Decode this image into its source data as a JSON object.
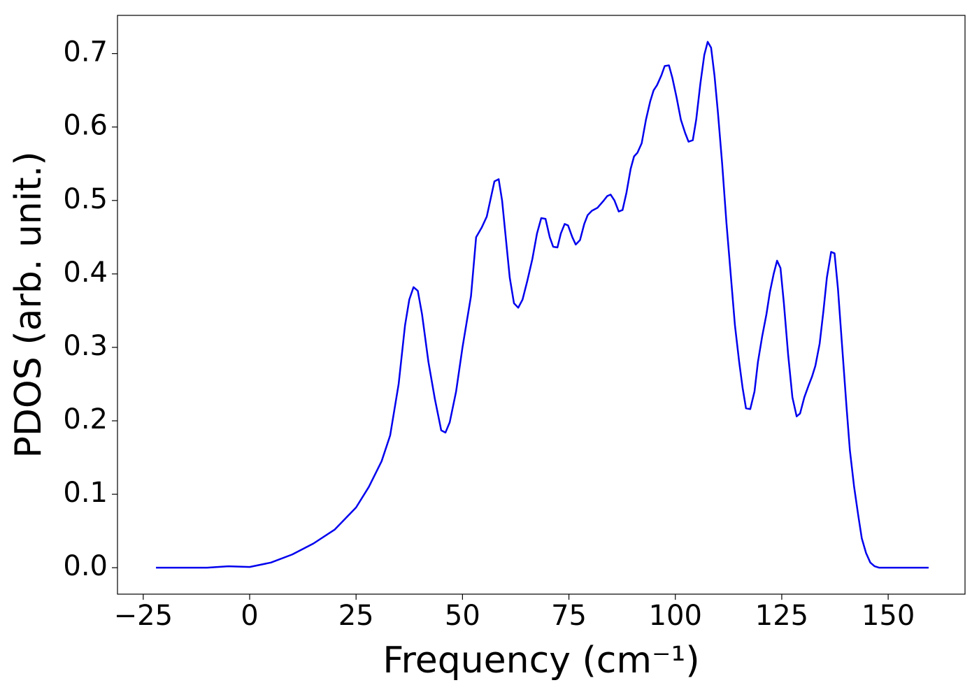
{
  "chart_data": {
    "type": "line",
    "xlabel": "Frequency (cm⁻¹)",
    "ylabel": "PDOS (arb. unit.)",
    "xlim": [
      -31.05,
      168.05
    ],
    "ylim": [
      -0.036,
      0.752
    ],
    "xticks": [
      {
        "value": -25,
        "label": "−25"
      },
      0,
      25,
      50,
      75,
      100,
      125,
      150
    ],
    "yticks": [
      {
        "value": 0,
        "label": "0.0"
      },
      0.1,
      0.2,
      0.3,
      0.4,
      0.5,
      0.6,
      0.7
    ],
    "grid": false,
    "series": [
      {
        "color": "#0000ee",
        "x": [
          -22,
          -10,
          -5,
          0,
          5,
          10,
          15,
          20,
          25,
          28,
          31,
          33,
          35,
          36.5,
          37.5,
          38.5,
          39.5,
          40.5,
          42,
          43.5,
          45,
          46,
          47,
          48.5,
          50,
          52,
          53.2,
          54.5,
          55.7,
          57.5,
          58.5,
          59.3,
          61.1,
          62.1,
          63.1,
          64.1,
          65.2,
          66.4,
          67.5,
          68.5,
          69.5,
          70.5,
          71.3,
          72.3,
          73.1,
          74.0,
          74.8,
          75.8,
          76.6,
          77.6,
          78.6,
          79.4,
          80.4,
          81.7,
          83.2,
          84.0,
          84.8,
          85.7,
          86.7,
          87.6,
          88.5,
          89.5,
          90.3,
          91.1,
          92.1,
          93.1,
          94.1,
          94.9,
          95.7,
          96.7,
          97.5,
          98.5,
          99.3,
          100.3,
          101.3,
          102.3,
          103.1,
          104.1,
          104.9,
          105.9,
          106.8,
          107.6,
          108.4,
          109.2,
          110,
          111,
          112,
          113,
          114,
          115,
          115.8,
          116.6,
          117.6,
          118.6,
          119.4,
          120.4,
          121.4,
          122.2,
          123.1,
          123.9,
          124.7,
          125.5,
          126.5,
          127.5,
          128.5,
          129.3,
          130.3,
          131.3,
          132.1,
          132.9,
          133.9,
          134.8,
          135.6,
          136.6,
          137.4,
          138.2,
          139.2,
          140.2,
          141,
          142,
          143,
          143.8,
          144.8,
          145.8,
          146.8,
          147.9,
          159.5
        ],
        "values": [
          0,
          0,
          0.002,
          0.001,
          0.007,
          0.018,
          0.033,
          0.052,
          0.082,
          0.11,
          0.145,
          0.18,
          0.25,
          0.33,
          0.365,
          0.382,
          0.377,
          0.345,
          0.28,
          0.23,
          0.187,
          0.184,
          0.198,
          0.24,
          0.3,
          0.37,
          0.45,
          0.463,
          0.478,
          0.526,
          0.529,
          0.5,
          0.395,
          0.36,
          0.354,
          0.365,
          0.39,
          0.42,
          0.455,
          0.476,
          0.475,
          0.45,
          0.437,
          0.436,
          0.455,
          0.468,
          0.466,
          0.45,
          0.44,
          0.446,
          0.468,
          0.48,
          0.486,
          0.49,
          0.5,
          0.506,
          0.508,
          0.5,
          0.485,
          0.487,
          0.51,
          0.543,
          0.56,
          0.565,
          0.578,
          0.61,
          0.635,
          0.65,
          0.657,
          0.67,
          0.683,
          0.684,
          0.667,
          0.64,
          0.61,
          0.592,
          0.58,
          0.582,
          0.61,
          0.66,
          0.698,
          0.716,
          0.708,
          0.67,
          0.62,
          0.55,
          0.47,
          0.4,
          0.33,
          0.28,
          0.245,
          0.217,
          0.216,
          0.24,
          0.28,
          0.315,
          0.345,
          0.375,
          0.4,
          0.418,
          0.408,
          0.36,
          0.29,
          0.232,
          0.206,
          0.21,
          0.232,
          0.248,
          0.26,
          0.275,
          0.305,
          0.35,
          0.395,
          0.43,
          0.428,
          0.38,
          0.3,
          0.22,
          0.16,
          0.11,
          0.07,
          0.04,
          0.02,
          0.007,
          0.002,
          0,
          0
        ]
      }
    ]
  }
}
